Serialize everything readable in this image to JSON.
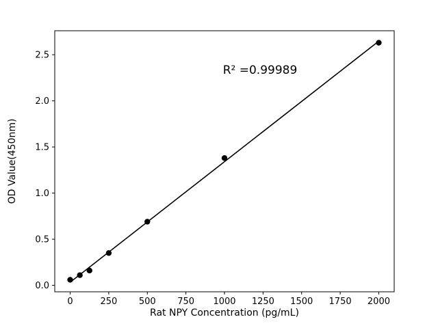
{
  "chart_data": {
    "type": "scatter",
    "x": [
      0,
      62.5,
      125,
      250,
      500,
      1000,
      2000
    ],
    "y": [
      0.06,
      0.11,
      0.16,
      0.35,
      0.69,
      1.38,
      2.63
    ],
    "fit_line": true,
    "title": "",
    "xlabel": "Rat NPY Concentration (pg/mL)",
    "ylabel": "OD Value(450nm)",
    "annotation": "R² =0.99989",
    "xticks": [
      0,
      250,
      500,
      750,
      1000,
      1250,
      1500,
      1750,
      2000
    ],
    "xtick_labels": [
      "0",
      "250",
      "500",
      "750",
      "1000",
      "1250",
      "1500",
      "1750",
      "2000"
    ],
    "yticks": [
      0.0,
      0.5,
      1.0,
      1.5,
      2.0,
      2.5
    ],
    "ytick_labels": [
      "0.0",
      "0.5",
      "1.0",
      "1.5",
      "2.0",
      "2.5"
    ],
    "xlim": [
      -100,
      2100
    ],
    "ylim": [
      -0.07,
      2.76
    ],
    "grid": false,
    "legend": "none",
    "marker_color": "#000000",
    "line_color": "#000000",
    "frame_color": "#000000"
  }
}
